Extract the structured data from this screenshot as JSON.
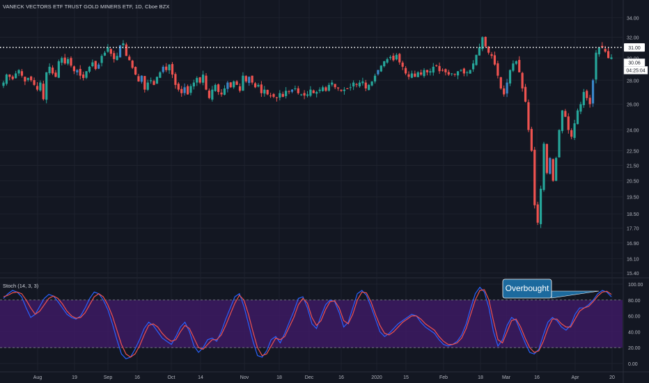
{
  "title": "VANECK VECTORS ETF TRUST GOLD MINERS ETF, 1D, Cboe BZX",
  "stoch_label": "Stoch (14, 3, 3)",
  "price_axis_ticks": [
    "34.00",
    "32.00",
    "30.00",
    "28.00",
    "26.00",
    "24.00",
    "22.50",
    "21.50",
    "20.50",
    "19.50",
    "18.50",
    "17.70",
    "16.90",
    "16.10",
    "15.40"
  ],
  "stoch_axis_ticks": [
    "100.00",
    "80.00",
    "60.00",
    "40.00",
    "20.00",
    "0.00"
  ],
  "time_axis_labels": [
    "Aug",
    "19",
    "Sep",
    "16",
    "Oct",
    "14",
    "Nov",
    "18",
    "Dec",
    "16",
    "2020",
    "15",
    "Feb",
    "18",
    "Mar",
    "16",
    "Apr",
    "20"
  ],
  "price_tag": "30.06",
  "countdown_tag": "04:25:04",
  "hline_tag": "31.00",
  "annotation": "Overbought",
  "colors": {
    "background": "#131722",
    "grid": "#1e222d",
    "up": "#26a69a",
    "up_alt": "#3a86c8",
    "down": "#ef5350",
    "stoch_k": "#2962ff",
    "stoch_d": "#ef5350",
    "band_fill": "#3d1a63",
    "callout": "#1c6a9e"
  },
  "chart_data": [
    {
      "type": "candlestick",
      "title": "VANECK VECTORS ETF TRUST GOLD MINERS ETF, 1D, Cboe BZX",
      "y_axis": "price (log scale)",
      "ylim": [
        15.2,
        35.0
      ],
      "horizontal_line": 31.0,
      "last_price": 30.06,
      "x_labels": [
        "Aug",
        "19",
        "Sep",
        "16",
        "Oct",
        "14",
        "Nov",
        "18",
        "Dec",
        "16",
        "2020",
        "15",
        "Feb",
        "18",
        "Mar",
        "16",
        "Apr",
        "20"
      ],
      "close_series": [
        27.8,
        28.5,
        28.3,
        28.1,
        28.6,
        28.9,
        28.4,
        27.9,
        28.2,
        28.0,
        27.6,
        27.2,
        27.8,
        26.4,
        28.7,
        29.2,
        28.6,
        28.3,
        29.7,
        30.0,
        29.5,
        29.9,
        29.3,
        28.8,
        28.9,
        28.4,
        28.2,
        28.8,
        29.2,
        29.6,
        29.0,
        29.4,
        30.2,
        30.5,
        31.0,
        30.4,
        29.9,
        30.2,
        31.2,
        31.4,
        30.2,
        29.8,
        29.1,
        28.5,
        27.9,
        28.4,
        27.2,
        27.8,
        28.0,
        27.6,
        28.3,
        28.7,
        29.2,
        28.9,
        29.4,
        28.5,
        27.6,
        27.2,
        26.9,
        27.4,
        26.8,
        27.5,
        27.8,
        28.2,
        27.8,
        28.5,
        27.2,
        26.5,
        27.2,
        27.6,
        27.0,
        26.8,
        27.3,
        27.8,
        27.4,
        27.9,
        27.6,
        27.1,
        28.4,
        27.9,
        28.3,
        27.8,
        27.4,
        27.6,
        26.9,
        27.2,
        26.8,
        26.7,
        26.6,
        26.5,
        26.9,
        26.6,
        27.1,
        27.0,
        27.2,
        27.3,
        26.9,
        26.8,
        26.7,
        26.8,
        27.2,
        26.9,
        27.0,
        27.2,
        27.4,
        27.1,
        27.6,
        27.8,
        27.4,
        27.3,
        27.1,
        27.2,
        27.3,
        27.4,
        27.8,
        27.6,
        27.8,
        27.9,
        27.3,
        27.6,
        27.9,
        28.4,
        28.9,
        29.3,
        29.7,
        29.9,
        30.1,
        29.8,
        30.3,
        29.6,
        29.2,
        28.6,
        28.3,
        28.6,
        28.3,
        28.7,
        28.5,
        28.9,
        28.7,
        28.8,
        29.2,
        29.3,
        28.8,
        28.9,
        28.7,
        28.5,
        28.6,
        28.5,
        28.8,
        28.9,
        28.6,
        28.7,
        28.9,
        29.5,
        30.3,
        31.0,
        32.0,
        31.1,
        30.5,
        30.2,
        29.4,
        28.4,
        27.3,
        26.8,
        27.8,
        28.9,
        29.5,
        29.7,
        28.7,
        27.3,
        26.2,
        24.0,
        22.5,
        19.0,
        18.0,
        20.0,
        23.0,
        21.0,
        22.0,
        20.5,
        22.0,
        24.0,
        25.5,
        25.0,
        24.0,
        23.5,
        24.5,
        25.5,
        26.0,
        27.0,
        26.5,
        26.0,
        28.0,
        30.5,
        31.0,
        31.0,
        30.6,
        30.0,
        30.06
      ],
      "notable_highs": [
        {
          "label": "Feb",
          "value": 32.0
        },
        {
          "label": "Apr",
          "value": 32.4
        }
      ],
      "notable_lows": [
        {
          "label": "16",
          "value": 16.2
        }
      ]
    },
    {
      "type": "line",
      "title": "Stoch (14, 3, 3)",
      "ylim": [
        0,
        100
      ],
      "bands": [
        20,
        80
      ],
      "annotation": "Overbought",
      "x_labels": [
        "Aug",
        "19",
        "Sep",
        "16",
        "Oct",
        "14",
        "Nov",
        "18",
        "Dec",
        "16",
        "2020",
        "15",
        "Feb",
        "18",
        "Mar",
        "16",
        "Apr",
        "20"
      ],
      "series": [
        {
          "name": "%K",
          "values": [
            82,
            88,
            92,
            90,
            84,
            70,
            58,
            62,
            72,
            82,
            87,
            85,
            78,
            70,
            62,
            58,
            56,
            60,
            70,
            82,
            90,
            88,
            80,
            68,
            50,
            30,
            12,
            6,
            8,
            18,
            30,
            44,
            52,
            48,
            40,
            32,
            28,
            24,
            34,
            46,
            52,
            40,
            22,
            14,
            20,
            30,
            32,
            28,
            40,
            56,
            70,
            84,
            88,
            72,
            50,
            28,
            10,
            8,
            16,
            30,
            34,
            26,
            38,
            52,
            66,
            82,
            84,
            70,
            50,
            44,
            60,
            74,
            80,
            78,
            64,
            46,
            52,
            70,
            88,
            92,
            86,
            72,
            56,
            40,
            34,
            38,
            44,
            50,
            54,
            58,
            62,
            60,
            52,
            46,
            42,
            38,
            30,
            24,
            22,
            24,
            28,
            36,
            50,
            70,
            88,
            96,
            90,
            70,
            40,
            22,
            30,
            48,
            58,
            54,
            40,
            26,
            14,
            12,
            18,
            36,
            52,
            58,
            54,
            46,
            42,
            48,
            62,
            70,
            70,
            74,
            80,
            88,
            92,
            90,
            84
          ]
        },
        {
          "name": "%D",
          "values": [
            84,
            86,
            89,
            90,
            88,
            80,
            70,
            62,
            66,
            74,
            82,
            85,
            82,
            75,
            66,
            60,
            57,
            58,
            64,
            74,
            84,
            88,
            84,
            74,
            60,
            42,
            24,
            12,
            8,
            12,
            22,
            36,
            48,
            50,
            46,
            38,
            32,
            28,
            30,
            40,
            48,
            44,
            32,
            20,
            18,
            24,
            30,
            30,
            36,
            48,
            62,
            76,
            86,
            80,
            62,
            40,
            20,
            10,
            12,
            22,
            32,
            30,
            34,
            46,
            58,
            74,
            82,
            76,
            58,
            48,
            54,
            68,
            78,
            79,
            70,
            54,
            50,
            62,
            80,
            90,
            89,
            78,
            62,
            48,
            38,
            36,
            40,
            46,
            52,
            56,
            60,
            60,
            56,
            50,
            46,
            42,
            34,
            28,
            24,
            24,
            26,
            32,
            44,
            62,
            80,
            92,
            93,
            80,
            54,
            30,
            26,
            40,
            54,
            56,
            46,
            32,
            20,
            14,
            16,
            28,
            44,
            56,
            56,
            50,
            46,
            46,
            56,
            66,
            70,
            72,
            78,
            85,
            90,
            91,
            87
          ]
        }
      ]
    }
  ]
}
